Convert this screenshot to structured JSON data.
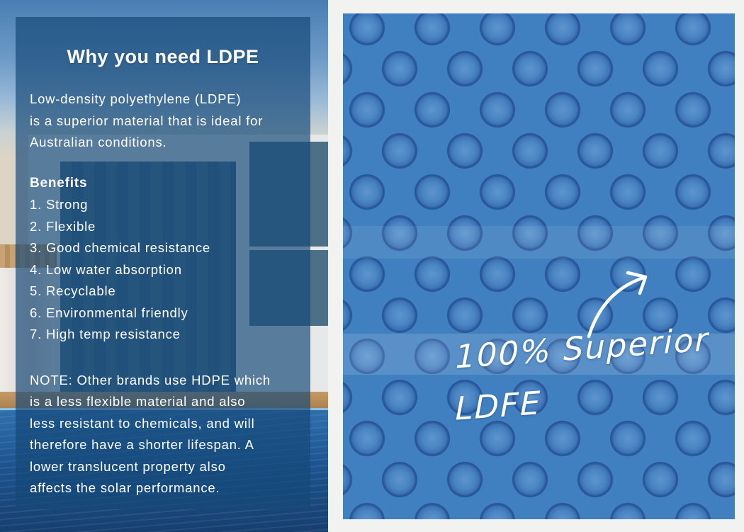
{
  "left_panel": {
    "title": "Why you need LDPE",
    "intro_lines": [
      "Low-density polyethylene (LDPE)",
      "is a superior material that is ideal for",
      "Australian conditions."
    ],
    "benefits_heading": "Benefits",
    "benefits": [
      "1. Strong",
      "2. Flexible",
      "3. Good chemical resistance",
      "4. Low water absorption",
      "5. Recyclable",
      "6. Environmental friendly",
      "7. High temp resistance"
    ],
    "note_lines": [
      "NOTE: Other brands use HDPE which",
      "is a less flexible material and also",
      "less resistant to chemicals, and will",
      "therefore have a shorter lifespan. A",
      "lower translucent property also",
      "affects the solar performance."
    ]
  },
  "right_panel": {
    "annotation_line1": "100% Superior",
    "annotation_line2": "LDFE",
    "arrow_icon": "curved-arrow-up-right"
  },
  "colors": {
    "panel_overlay": "rgba(21,72,120,0.68)",
    "text": "#ffffff",
    "bubble_base": "#4180c0",
    "bubble_ring": "#27589a",
    "sky_top": "#4a7eb3",
    "pool_water": "#1d5490",
    "frame_background": "#f2f3f1"
  }
}
